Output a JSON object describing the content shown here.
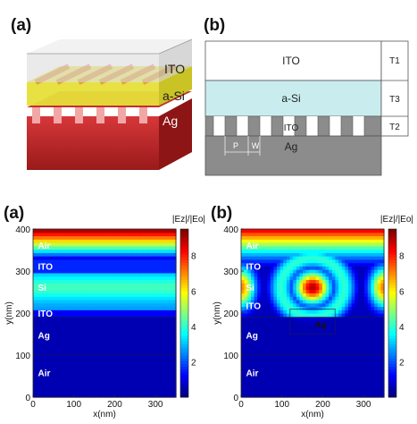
{
  "top": {
    "panel_a_label": "(a)",
    "panel_b_label": "(b)",
    "panel_a_layers": [
      "ITO",
      "a-Si",
      "Ag"
    ],
    "panel_b_layers": [
      "ITO",
      "a-Si",
      "ITO",
      "Ag"
    ],
    "panel_b_thickness_labels": [
      "T1",
      "T3",
      "T2"
    ],
    "panel_b_period_labels": [
      "P",
      "W"
    ]
  },
  "colors": {
    "ito_gray": "#cfcfcf",
    "asi_yellow": "#e8e33a",
    "ag_red": "#b3201f",
    "asi_blue": "#c9ecef",
    "ag_gray": "#8c8c8c"
  },
  "chart_data": [
    {
      "type": "heatmap",
      "panel_label": "(a)",
      "title": "",
      "xlabel": "x(nm)",
      "ylabel": "y(nm)",
      "xlim": [
        0,
        350
      ],
      "ylim": [
        0,
        400
      ],
      "x_ticks": [
        0,
        100,
        200,
        300
      ],
      "y_ticks": [
        0,
        100,
        200,
        300,
        400
      ],
      "colorbar": {
        "label": "|Ez|/|Eo|",
        "ticks": [
          2,
          4,
          6,
          8
        ],
        "range": [
          0,
          9.5
        ]
      },
      "region_labels": [
        "Air",
        "ITO",
        "Si",
        "ITO",
        "Ag",
        "Air"
      ]
    },
    {
      "type": "heatmap",
      "panel_label": "(b)",
      "title": "",
      "xlabel": "x(nm)",
      "ylabel": "y(nm)",
      "xlim": [
        0,
        350
      ],
      "ylim": [
        0,
        400
      ],
      "x_ticks": [
        0,
        100,
        200,
        300
      ],
      "y_ticks": [
        0,
        100,
        200,
        300,
        400
      ],
      "colorbar": {
        "label": "|Ez|/|Eo|",
        "ticks": [
          2,
          4,
          6,
          8
        ],
        "range": [
          0,
          9.5
        ]
      },
      "region_labels": [
        "Air",
        "ITO",
        "Si",
        "ITO",
        "Ag",
        "Ag",
        "Air"
      ]
    }
  ]
}
